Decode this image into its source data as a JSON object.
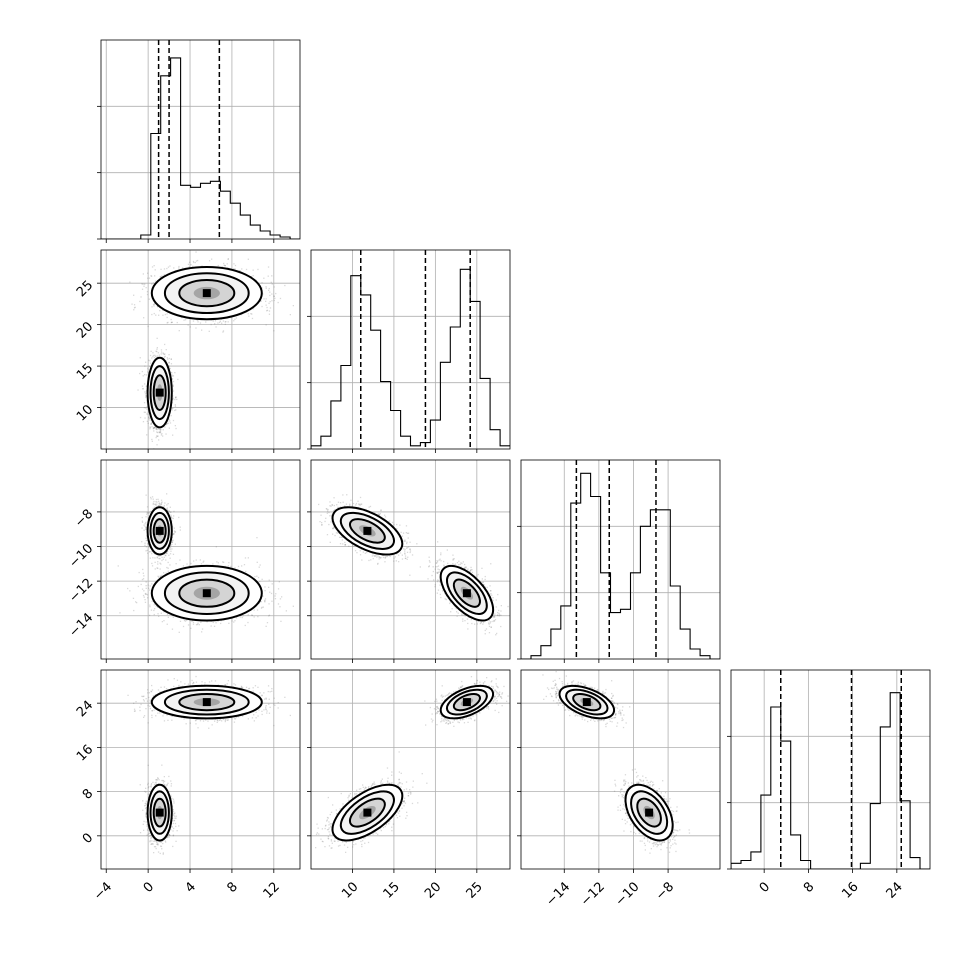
{
  "chart_data": {
    "type": "corner",
    "description_free": true,
    "n_params": 4,
    "grid": true,
    "params": [
      {
        "range": [
          -4.5,
          14.5
        ],
        "ticks": [
          -4,
          0,
          4,
          8,
          12
        ],
        "tick_labels": [
          "−4",
          "0",
          "4",
          "8",
          "12"
        ],
        "quantiles": [
          1.0,
          2.0,
          6.8
        ],
        "hist_edges_start": -4.5,
        "hist_bin_width": 0.95,
        "hist_counts": [
          0,
          0,
          0,
          0,
          2,
          53,
          82,
          91,
          27,
          26,
          28,
          29,
          24,
          18,
          12,
          7,
          4,
          2,
          1,
          0
        ],
        "hist_ymax": 100
      },
      {
        "range": [
          5,
          29
        ],
        "ticks": [
          10,
          15,
          20,
          25
        ],
        "tick_labels": [
          "10",
          "15",
          "20",
          "25"
        ],
        "quantiles": [
          11.0,
          18.8,
          24.2
        ],
        "hist_edges_start": 5,
        "hist_bin_width": 1.2,
        "hist_counts": [
          1,
          4,
          15,
          26,
          54,
          48,
          37,
          21,
          12,
          4,
          1,
          2,
          9,
          27,
          38,
          56,
          46,
          22,
          6,
          1
        ],
        "hist_ymax": 62
      },
      {
        "range": [
          -16.5,
          -5.0
        ],
        "ticks": [
          -14,
          -12,
          -10,
          -8
        ],
        "tick_labels": [
          "−14",
          "−12",
          "−10",
          "−8"
        ],
        "quantiles": [
          -13.3,
          -11.4,
          -8.7
        ],
        "hist_edges_start": -16.5,
        "hist_bin_width": 0.575,
        "hist_counts": [
          0,
          1,
          4,
          9,
          16,
          47,
          56,
          49,
          26,
          14,
          15,
          26,
          40,
          45,
          45,
          22,
          9,
          3,
          1,
          0
        ],
        "hist_ymax": 60
      },
      {
        "range": [
          -6,
          30
        ],
        "ticks": [
          0,
          8,
          16,
          24
        ],
        "tick_labels": [
          "0",
          "8",
          "16",
          "24"
        ],
        "quantiles": [
          3.0,
          15.8,
          24.8
        ],
        "hist_edges_start": -6,
        "hist_bin_width": 1.8,
        "hist_counts": [
          2,
          3,
          6,
          26,
          57,
          45,
          12,
          3,
          0,
          0,
          0,
          0,
          0,
          2,
          23,
          50,
          62,
          24,
          4,
          0
        ],
        "hist_ymax": 70
      }
    ],
    "modes": [
      {
        "center": [
          1.1,
          11.8,
          -9.1,
          4.2
        ],
        "sd": [
          0.55,
          2.0,
          0.65,
          2.4
        ],
        "corr": [
          [
            1,
            0,
            0,
            0
          ],
          [
            0,
            1,
            -0.55,
            0.6
          ],
          [
            0,
            -0.55,
            1,
            -0.45
          ],
          [
            0,
            0.6,
            -0.45,
            1
          ]
        ],
        "samples": 1900
      },
      {
        "center": [
          5.6,
          23.8,
          -12.7,
          24.2
        ],
        "sd": [
          2.5,
          1.5,
          0.75,
          1.4
        ],
        "corr": [
          [
            1,
            0,
            0,
            0
          ],
          [
            0,
            1,
            -0.6,
            0.5
          ],
          [
            0,
            -0.6,
            1,
            -0.5
          ],
          [
            0,
            0.5,
            -0.5,
            1
          ]
        ],
        "samples": 1900
      }
    ]
  }
}
